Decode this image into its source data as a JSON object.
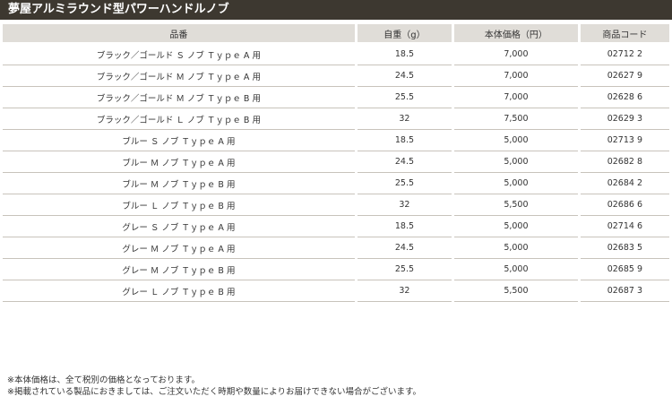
{
  "title": "夢屋アルミラウンド型パワーハンドルノブ",
  "table": {
    "headers": [
      "品番",
      "自重（g）",
      "本体価格（円）",
      "商品コード"
    ],
    "rows": [
      [
        "ブラック／ゴールド Ｓ ノブ Ｔｙｐｅ A 用",
        "18.5",
        "7,000",
        "02712 2"
      ],
      [
        "ブラック／ゴールド Ｍ ノブ Ｔｙｐｅ A 用",
        "24.5",
        "7,000",
        "02627 9"
      ],
      [
        "ブラック／ゴールド Ｍ ノブ Ｔｙｐｅ B 用",
        "25.5",
        "7,000",
        "02628 6"
      ],
      [
        "ブラック／ゴールド Ｌ ノブ Ｔｙｐｅ B 用",
        "32",
        "7,500",
        "02629 3"
      ],
      [
        "ブルー Ｓ ノブ Ｔｙｐｅ A 用",
        "18.5",
        "5,000",
        "02713 9"
      ],
      [
        "ブルー Ｍ ノブ Ｔｙｐｅ A 用",
        "24.5",
        "5,000",
        "02682 8"
      ],
      [
        "ブルー Ｍ ノブ Ｔｙｐｅ B 用",
        "25.5",
        "5,000",
        "02684 2"
      ],
      [
        "ブルー Ｌ ノブ Ｔｙｐｅ B 用",
        "32",
        "5,500",
        "02686 6"
      ],
      [
        "グレー Ｓ ノブ Ｔｙｐｅ A 用",
        "18.5",
        "5,000",
        "02714 6"
      ],
      [
        "グレー Ｍ ノブ Ｔｙｐｅ A 用",
        "24.5",
        "5,000",
        "02683 5"
      ],
      [
        "グレー Ｍ ノブ Ｔｙｐｅ B 用",
        "25.5",
        "5,000",
        "02685 9"
      ],
      [
        "グレー Ｌ ノブ Ｔｙｐｅ B 用",
        "32",
        "5,500",
        "02687 3"
      ]
    ]
  },
  "notes": [
    "※本体価格は、全て税別の価格となっております。",
    "※掲載されている製品におきましては、ご注文いただく時期や数量によりお届けできない場合がございます。"
  ]
}
